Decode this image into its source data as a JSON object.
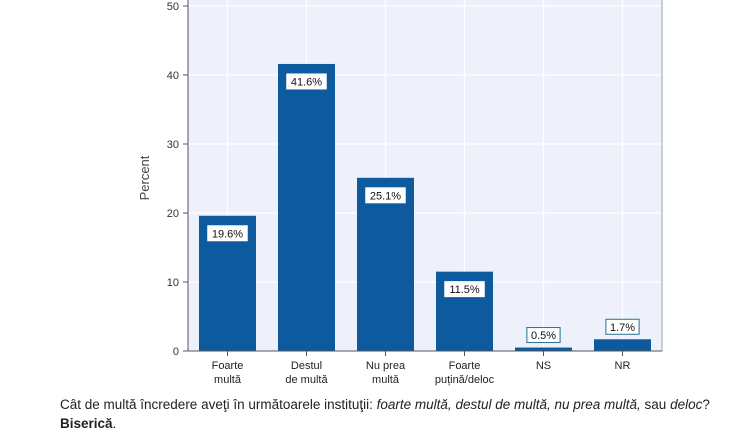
{
  "chart_data": {
    "type": "bar",
    "categories": [
      [
        "Foarte",
        "multă"
      ],
      [
        "Destul",
        "de multă"
      ],
      [
        "Nu prea",
        "multă"
      ],
      [
        "Foarte",
        "puțină/deloc"
      ],
      [
        "NS"
      ],
      [
        "NR"
      ]
    ],
    "values": [
      19.6,
      41.6,
      25.1,
      11.5,
      0.5,
      1.7
    ],
    "data_labels": [
      "19.6%",
      "41.6%",
      "25.1%",
      "11.5%",
      "0.5%",
      "1.7%"
    ],
    "ylabel": "Percent",
    "ylim": [
      0,
      50
    ],
    "yticks": [
      0,
      10,
      20,
      30,
      40,
      50
    ],
    "grid": true,
    "colors": {
      "bar": "#0d5a9e",
      "plot_bg": "#eef1fb",
      "grid": "#ffffff",
      "frame": "#9aa4b4"
    }
  },
  "caption": {
    "intro": "Cât de multă încredere aveţi în următoarele instituţii: ",
    "options": "foarte multă, destul de multă, nu prea multă,",
    "options_tail": " sau ",
    "last_option": "deloc",
    "question_mark": "? ",
    "institution": "Biserică",
    "end": "."
  }
}
